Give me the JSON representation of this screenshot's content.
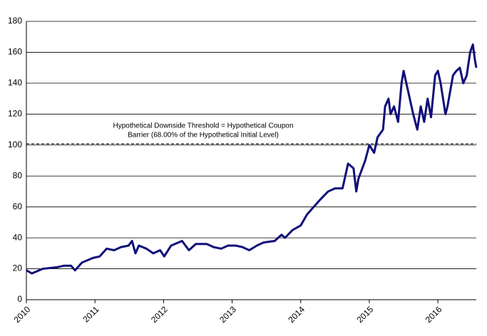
{
  "chart_data": {
    "type": "line",
    "annotation": [
      "Hypothetical Downside Threshold = Hypothetical Coupon",
      "Barrier (68.00% of the Hypothetical Initial Level)"
    ],
    "threshold": 100.8,
    "x": [
      2010,
      2010.08,
      2010.24,
      2010.45,
      2010.55,
      2010.65,
      2010.71,
      2010.81,
      2010.97,
      2011.07,
      2011.17,
      2011.28,
      2011.38,
      2011.49,
      2011.54,
      2011.59,
      2011.64,
      2011.75,
      2011.85,
      2011.95,
      2012.01,
      2012.11,
      2012.27,
      2012.37,
      2012.47,
      2012.63,
      2012.73,
      2012.84,
      2012.94,
      2013.05,
      2013.15,
      2013.25,
      2013.36,
      2013.46,
      2013.62,
      2013.72,
      2013.77,
      2013.88,
      2014.0,
      2014.09,
      2014.29,
      2014.4,
      2014.5,
      2014.61,
      2014.69,
      2014.77,
      2014.81,
      2014.84,
      2014.94,
      2015.0,
      2015.07,
      2015.12,
      2015.2,
      2015.23,
      2015.28,
      2015.31,
      2015.36,
      2015.42,
      2015.47,
      2015.5,
      2015.54,
      2015.59,
      2015.64,
      2015.7,
      2015.75,
      2015.8,
      2015.85,
      2015.9,
      2015.96,
      2016.0,
      2016.04,
      2016.11,
      2016.14,
      2016.22,
      2016.27,
      2016.32,
      2016.37,
      2016.42,
      2016.47,
      2016.51,
      2016.54,
      2016.56
    ],
    "series": [
      {
        "color": "#0f0f7a",
        "values": [
          19,
          17,
          20,
          21,
          22,
          22,
          19,
          24,
          27,
          28,
          33,
          32,
          34,
          35,
          38,
          30,
          35,
          33,
          30,
          32,
          28,
          35,
          38,
          32,
          36,
          36,
          34,
          33,
          35,
          35,
          34,
          32,
          35,
          37,
          38,
          42,
          40,
          45,
          48,
          55,
          65,
          70,
          72,
          72,
          88,
          85,
          70,
          78,
          90,
          100,
          95,
          105,
          110,
          125,
          130,
          120,
          125,
          115,
          140,
          148,
          140,
          130,
          120,
          110,
          125,
          115,
          130,
          118,
          145,
          148,
          140,
          120,
          125,
          145,
          148,
          150,
          140,
          145,
          160,
          165,
          155,
          150
        ]
      }
    ],
    "xlim": [
      2010,
      2016.56
    ],
    "xticks": [
      2010,
      2011,
      2012,
      2013,
      2014,
      2015,
      2016
    ],
    "ylim": [
      0,
      180
    ],
    "yticks": [
      0,
      20,
      40,
      60,
      80,
      100,
      120,
      140,
      160,
      180
    ],
    "grid": true
  }
}
